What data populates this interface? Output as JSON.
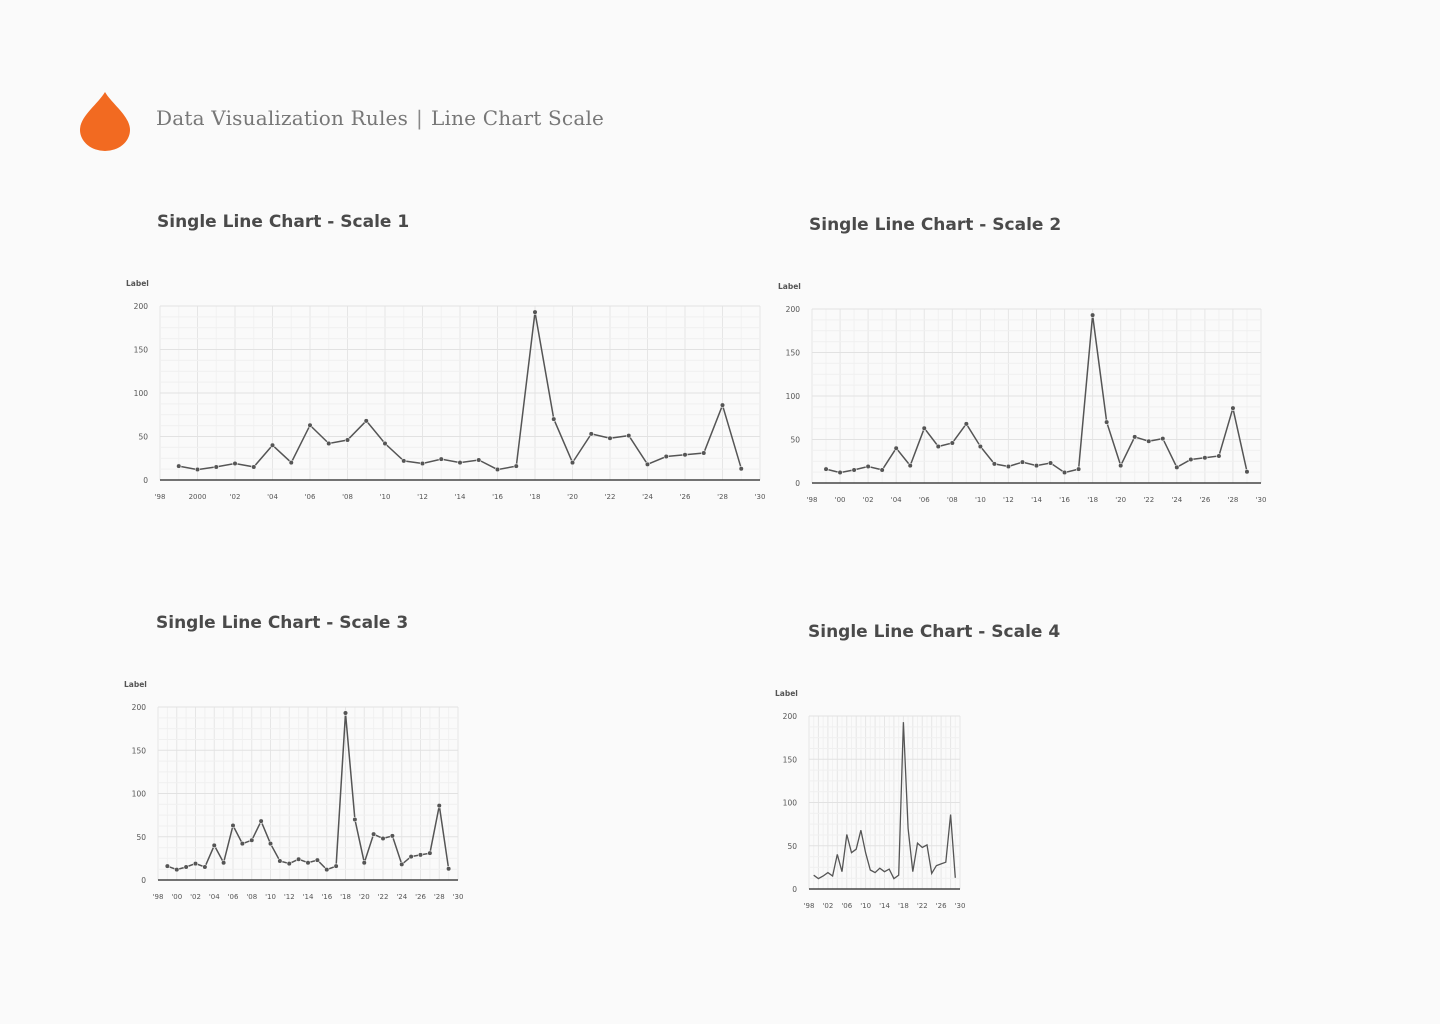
{
  "header": {
    "title": "Data Visualization Rules",
    "separator": "|",
    "subtitle": "Line Chart Scale",
    "logo_icon": "drop-icon",
    "accent_color": "#f26a21"
  },
  "chart_data": [
    {
      "type": "line",
      "title": "Single Line Chart - Scale 1",
      "ylabel": "Label",
      "xlabel": "",
      "ylim": [
        0,
        200
      ],
      "yticks": [
        0,
        50,
        100,
        150,
        200
      ],
      "xlim": [
        1998,
        2030
      ],
      "x_tick_values": [
        1998,
        2000,
        2002,
        2004,
        2006,
        2008,
        2010,
        2012,
        2014,
        2016,
        2018,
        2020,
        2022,
        2024,
        2026,
        2028,
        2030
      ],
      "x_tick_labels": [
        "'98",
        "2000",
        "'02",
        "'04",
        "'06",
        "'08",
        "'10",
        "'12",
        "'14",
        "'16",
        "'18",
        "'20",
        "'22",
        "'24",
        "'26",
        "'28",
        "'30"
      ],
      "grid": true,
      "markers": true,
      "line_color": "#555555",
      "x": [
        1999,
        2000,
        2001,
        2002,
        2003,
        2004,
        2005,
        2006,
        2007,
        2008,
        2009,
        2010,
        2011,
        2012,
        2013,
        2014,
        2015,
        2016,
        2017,
        2018,
        2019,
        2020,
        2021,
        2022,
        2023,
        2024,
        2025,
        2026,
        2027,
        2028,
        2029
      ],
      "values": [
        16,
        12,
        15,
        19,
        15,
        40,
        20,
        63,
        42,
        46,
        68,
        42,
        22,
        19,
        24,
        20,
        23,
        12,
        16,
        193,
        70,
        20,
        53,
        48,
        51,
        18,
        27,
        29,
        31,
        86,
        13
      ]
    },
    {
      "type": "line",
      "title": "Single Line Chart - Scale 2",
      "ylabel": "Label",
      "xlabel": "",
      "ylim": [
        0,
        200
      ],
      "yticks": [
        0,
        50,
        100,
        150,
        200
      ],
      "xlim": [
        1998,
        2030
      ],
      "x_tick_values": [
        1998,
        2000,
        2002,
        2004,
        2006,
        2008,
        2010,
        2012,
        2014,
        2016,
        2018,
        2020,
        2022,
        2024,
        2026,
        2028,
        2030
      ],
      "x_tick_labels": [
        "'98",
        "'00",
        "'02",
        "'04",
        "'06",
        "'08",
        "'10",
        "'12",
        "'14",
        "'16",
        "'18",
        "'20",
        "'22",
        "'24",
        "'26",
        "'28",
        "'30"
      ],
      "grid": true,
      "markers": true,
      "line_color": "#555555",
      "x": [
        1999,
        2000,
        2001,
        2002,
        2003,
        2004,
        2005,
        2006,
        2007,
        2008,
        2009,
        2010,
        2011,
        2012,
        2013,
        2014,
        2015,
        2016,
        2017,
        2018,
        2019,
        2020,
        2021,
        2022,
        2023,
        2024,
        2025,
        2026,
        2027,
        2028,
        2029
      ],
      "values": [
        16,
        12,
        15,
        19,
        15,
        40,
        20,
        63,
        42,
        46,
        68,
        42,
        22,
        19,
        24,
        20,
        23,
        12,
        16,
        193,
        70,
        20,
        53,
        48,
        51,
        18,
        27,
        29,
        31,
        86,
        13
      ]
    },
    {
      "type": "line",
      "title": "Single Line Chart - Scale 3",
      "ylabel": "Label",
      "xlabel": "",
      "ylim": [
        0,
        200
      ],
      "yticks": [
        0,
        50,
        100,
        150,
        200
      ],
      "xlim": [
        1998,
        2030
      ],
      "x_tick_values": [
        1998,
        2000,
        2002,
        2004,
        2006,
        2008,
        2010,
        2012,
        2014,
        2016,
        2018,
        2020,
        2022,
        2024,
        2026,
        2028,
        2030
      ],
      "x_tick_labels": [
        "'98",
        "'00",
        "'02",
        "'04",
        "'06",
        "'08",
        "'10",
        "'12",
        "'14",
        "'16",
        "'18",
        "'20",
        "'22",
        "'24",
        "'26",
        "'28",
        "'30"
      ],
      "grid": true,
      "markers": true,
      "line_color": "#555555",
      "x": [
        1999,
        2000,
        2001,
        2002,
        2003,
        2004,
        2005,
        2006,
        2007,
        2008,
        2009,
        2010,
        2011,
        2012,
        2013,
        2014,
        2015,
        2016,
        2017,
        2018,
        2019,
        2020,
        2021,
        2022,
        2023,
        2024,
        2025,
        2026,
        2027,
        2028,
        2029
      ],
      "values": [
        16,
        12,
        15,
        19,
        15,
        40,
        20,
        63,
        42,
        46,
        68,
        42,
        22,
        19,
        24,
        20,
        23,
        12,
        16,
        193,
        70,
        20,
        53,
        48,
        51,
        18,
        27,
        29,
        31,
        86,
        13
      ]
    },
    {
      "type": "line",
      "title": "Single Line Chart - Scale 4",
      "ylabel": "Label",
      "xlabel": "",
      "ylim": [
        0,
        200
      ],
      "yticks": [
        0,
        50,
        100,
        150,
        200
      ],
      "xlim": [
        1998,
        2030
      ],
      "x_tick_values": [
        1998,
        2002,
        2006,
        2010,
        2014,
        2018,
        2022,
        2026,
        2030
      ],
      "x_tick_labels": [
        "'98",
        "'02",
        "'06",
        "'10",
        "'14",
        "'18",
        "'22",
        "'26",
        "'30"
      ],
      "grid": true,
      "markers": false,
      "line_color": "#555555",
      "x": [
        1999,
        2000,
        2001,
        2002,
        2003,
        2004,
        2005,
        2006,
        2007,
        2008,
        2009,
        2010,
        2011,
        2012,
        2013,
        2014,
        2015,
        2016,
        2017,
        2018,
        2019,
        2020,
        2021,
        2022,
        2023,
        2024,
        2025,
        2026,
        2027,
        2028,
        2029
      ],
      "values": [
        16,
        12,
        15,
        19,
        15,
        40,
        20,
        63,
        42,
        46,
        68,
        42,
        22,
        19,
        24,
        20,
        23,
        12,
        16,
        193,
        70,
        20,
        53,
        48,
        51,
        18,
        27,
        29,
        31,
        86,
        13
      ]
    }
  ]
}
